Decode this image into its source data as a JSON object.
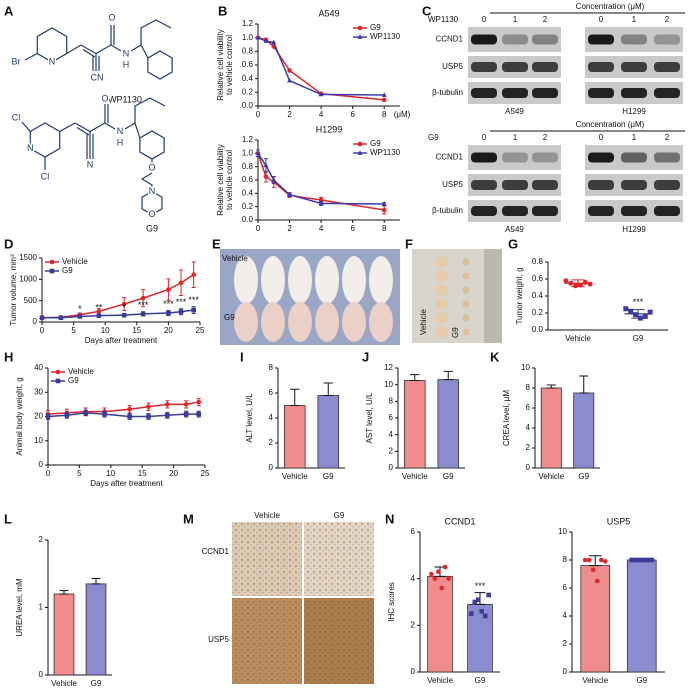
{
  "panel_letters": [
    "A",
    "B",
    "C",
    "D",
    "E",
    "F",
    "G",
    "H",
    "I",
    "J",
    "K",
    "L",
    "M",
    "N"
  ],
  "structures": [
    {
      "atoms": [
        "Br",
        "N",
        "CN",
        "O",
        "N",
        "H"
      ],
      "name": "WP1130"
    },
    {
      "atoms": [
        "Cl",
        "N",
        "Cl",
        "N",
        "O",
        "N",
        "H",
        "O",
        "N",
        "O"
      ],
      "name": "G9"
    }
  ],
  "western_blots": [
    {
      "header": "Concentration (μM)",
      "treatment": "WP1130",
      "doses": [
        "0",
        "1",
        "2",
        "0",
        "1",
        "2"
      ],
      "proteins": [
        "CCND1",
        "USP5",
        "β-tubulin"
      ],
      "cell_lines": [
        "A549",
        "H1299"
      ]
    },
    {
      "header": "Concentration (μM)",
      "treatment": "G9",
      "doses": [
        "0",
        "1",
        "2",
        "0",
        "1",
        "2"
      ],
      "proteins": [
        "CCND1",
        "USP5",
        "β-tubulin"
      ],
      "cell_lines": [
        "A549",
        "H1299"
      ]
    }
  ],
  "photos": {
    "E": [
      "Vehicle",
      "G9"
    ],
    "F": [
      "Vehicle",
      "G9"
    ]
  },
  "ihc": {
    "groups": [
      "Vehicle",
      "G9"
    ],
    "stains": [
      "CCND1",
      "USP5"
    ]
  },
  "chart_data": [
    {
      "type": "line",
      "title": "A549",
      "y_label": [
        "Relative cell viability",
        "to vehicle control"
      ],
      "x_unit": "(μM)",
      "x": [
        0,
        0.5,
        1,
        2,
        4,
        8
      ],
      "xlim": [
        0,
        9
      ],
      "xticks": [
        0,
        2,
        4,
        6,
        8
      ],
      "ylim": [
        0,
        1.2
      ],
      "yticks": [
        {
          "value": 0,
          "label": "0.0"
        },
        0.2,
        0.4,
        0.6,
        0.8,
        {
          "value": 1,
          "label": "1.0"
        },
        1.2
      ],
      "legend": "upper right",
      "series": [
        {
          "name": "G9",
          "color": "#e0252b",
          "marker": "circle",
          "values": [
            1.0,
            0.97,
            0.87,
            0.52,
            0.18,
            0.09
          ]
        },
        {
          "name": "WP1130",
          "color": "#3a3ab0",
          "marker": "triangle",
          "values": [
            1.0,
            0.95,
            0.93,
            0.37,
            0.17,
            0.16
          ]
        }
      ]
    },
    {
      "type": "line",
      "title": "H1299",
      "y_label": [
        "Relative cell viability",
        "to vehicle control"
      ],
      "x": [
        0,
        0.5,
        1,
        2,
        4,
        8
      ],
      "xlim": [
        0,
        9
      ],
      "xticks": [
        0,
        2,
        4,
        6,
        8
      ],
      "ylim": [
        0,
        1.2
      ],
      "yticks": [
        {
          "value": 0,
          "label": "0.0"
        },
        0.2,
        0.4,
        0.6,
        0.8,
        {
          "value": 1,
          "label": "1.0"
        },
        1.2
      ],
      "legend": "upper right",
      "series": [
        {
          "name": "G9",
          "color": "#e0252b",
          "marker": "circle",
          "values": [
            1.0,
            0.65,
            0.57,
            0.37,
            0.3,
            0.15
          ],
          "errors": [
            0.05,
            0.08,
            0.08,
            0.03,
            0.04,
            0.06
          ]
        },
        {
          "name": "WP1130",
          "color": "#3a3ab0",
          "marker": "triangle",
          "values": [
            1.0,
            0.82,
            0.6,
            0.38,
            0.25,
            0.24
          ],
          "errors": [
            0.05,
            0.1,
            0.05,
            0.03,
            0.03,
            0.02
          ]
        }
      ]
    },
    {
      "type": "line",
      "y_label": "Tumor volume, mm³",
      "x_label": "Days after treatment",
      "x": [
        0,
        3,
        6,
        9,
        13,
        16,
        20,
        22,
        24
      ],
      "xlim": [
        0,
        25
      ],
      "xticks": [
        0,
        5,
        10,
        15,
        20,
        25
      ],
      "ylim": [
        0,
        1500
      ],
      "yticks": [
        0,
        500,
        1000,
        1500
      ],
      "legend": "upper left",
      "series": [
        {
          "name": "Vehicle",
          "color": "#e0252b",
          "marker": "circle",
          "values": [
            100,
            110,
            170,
            250,
            420,
            560,
            760,
            920,
            1110
          ],
          "errors": [
            10,
            20,
            40,
            70,
            150,
            200,
            250,
            300,
            300
          ]
        },
        {
          "name": "G9",
          "color": "#3b3b9b",
          "marker": "square",
          "values": [
            100,
            100,
            130,
            150,
            160,
            190,
            210,
            240,
            280
          ],
          "errors": [
            10,
            15,
            20,
            30,
            40,
            50,
            60,
            70,
            80
          ],
          "significance": [
            null,
            null,
            "*",
            "**",
            "*",
            "***",
            "***",
            "***",
            "***"
          ]
        }
      ]
    },
    {
      "type": "strip",
      "y_label": "Tumor weight, g",
      "categories": [
        "Vehicle",
        "G9"
      ],
      "ylim": [
        0,
        0.8
      ],
      "yticks": [
        {
          "value": 0,
          "label": "0.0"
        },
        0.2,
        0.4,
        0.6,
        0.8
      ],
      "colors": [
        "#e0252b",
        "#3b3b9b"
      ],
      "markers": [
        "circle",
        "square"
      ],
      "points": [
        [
          0.58,
          0.55,
          0.52,
          0.53,
          0.56,
          0.54
        ],
        [
          0.25,
          0.22,
          0.18,
          0.14,
          0.16,
          0.21
        ]
      ],
      "means": [
        0.55,
        0.19
      ],
      "errors": [
        0.04,
        0.05
      ],
      "significance": [
        null,
        "***"
      ]
    },
    {
      "type": "line",
      "y_label": "Animal body weight, g",
      "x_label": "Days after treatment",
      "x": [
        0,
        3,
        6,
        9,
        13,
        16,
        19,
        22,
        24
      ],
      "xlim": [
        0,
        25
      ],
      "xticks": [
        0,
        5,
        10,
        15,
        20,
        25
      ],
      "ylim": [
        0,
        40
      ],
      "yticks": [
        0,
        10,
        20,
        30,
        40
      ],
      "legend": "upper left",
      "series": [
        {
          "name": "Vehicle",
          "color": "#e0252b",
          "marker": "circle",
          "values": [
            21,
            21.5,
            22,
            22,
            23,
            24,
            25,
            25,
            26
          ],
          "errors": [
            1.5,
            1.5,
            1.5,
            1.5,
            1.5,
            1.5,
            1.5,
            1.5,
            1.5
          ]
        },
        {
          "name": "G9",
          "color": "#3b3b9b",
          "marker": "square",
          "values": [
            20,
            20.5,
            21.5,
            21,
            20,
            20,
            20.5,
            21,
            21
          ],
          "errors": [
            1.2,
            1.2,
            1.2,
            1.2,
            1.2,
            1.2,
            1.2,
            1.2,
            1.2
          ]
        }
      ]
    },
    {
      "type": "bar",
      "y_label": "ALT level, U/L",
      "categories": [
        "Vehicle",
        "G9"
      ],
      "values": [
        5.0,
        5.8
      ],
      "errors": [
        1.3,
        1.0
      ],
      "colors": [
        "#f28b8b",
        "#8b8bd0"
      ],
      "ylim": [
        0,
        8
      ],
      "yticks": [
        0,
        2,
        4,
        6,
        8
      ]
    },
    {
      "type": "bar",
      "y_label": "AST level, U/L",
      "categories": [
        "Vehicle",
        "G9"
      ],
      "values": [
        10.5,
        10.6
      ],
      "errors": [
        0.7,
        1.0
      ],
      "colors": [
        "#f28b8b",
        "#8b8bd0"
      ],
      "ylim": [
        0,
        12
      ],
      "yticks": [
        0,
        2,
        4,
        6,
        8,
        10,
        12
      ]
    },
    {
      "type": "bar",
      "y_label": "CREA level, μM",
      "categories": [
        "Vehicle",
        "G9"
      ],
      "values": [
        8.0,
        7.5
      ],
      "errors": [
        0.3,
        1.7
      ],
      "colors": [
        "#f28b8b",
        "#8b8bd0"
      ],
      "ylim": [
        0,
        10
      ],
      "yticks": [
        0,
        2,
        4,
        6,
        8,
        10
      ]
    },
    {
      "type": "bar",
      "y_label": "UREA level, mM",
      "categories": [
        "Vehicle",
        "G9"
      ],
      "values": [
        1.2,
        1.35
      ],
      "errors": [
        0.05,
        0.08
      ],
      "colors": [
        "#f28b8b",
        "#8b8bd0"
      ],
      "ylim": [
        0,
        2
      ],
      "yticks": [
        0,
        1,
        2
      ]
    },
    {
      "type": "bar",
      "title": "CCND1",
      "y_label": "IHC scores",
      "categories": [
        "Vehicle",
        "G9"
      ],
      "values": [
        4.1,
        2.9
      ],
      "errors": [
        0.4,
        0.5
      ],
      "colors": [
        "#f28b8b",
        "#8b8bd0"
      ],
      "point_colors": [
        "#e0252b",
        "#3b3b9b"
      ],
      "points": [
        [
          4.2,
          4.0,
          4.3,
          3.6,
          4.5,
          4.0
        ],
        [
          2.5,
          3.0,
          3.1,
          2.6,
          2.4,
          3.3
        ]
      ],
      "significance": [
        null,
        "***"
      ],
      "ylim": [
        0,
        6
      ],
      "yticks": [
        0,
        2,
        4,
        6
      ]
    },
    {
      "type": "bar",
      "title": "USP5",
      "categories": [
        "Vehicle",
        "G9"
      ],
      "values": [
        7.6,
        8.0
      ],
      "errors": [
        0.7,
        0.05
      ],
      "colors": [
        "#f28b8b",
        "#8b8bd0"
      ],
      "point_colors": [
        "#e0252b",
        "#3b3b9b"
      ],
      "points": [
        [
          8,
          8,
          7.3,
          6.5,
          8,
          7.9
        ],
        [
          8,
          8,
          8,
          8,
          8,
          8
        ]
      ],
      "ylim": [
        0,
        10
      ],
      "yticks": [
        0,
        2,
        4,
        6,
        8,
        10
      ]
    }
  ]
}
